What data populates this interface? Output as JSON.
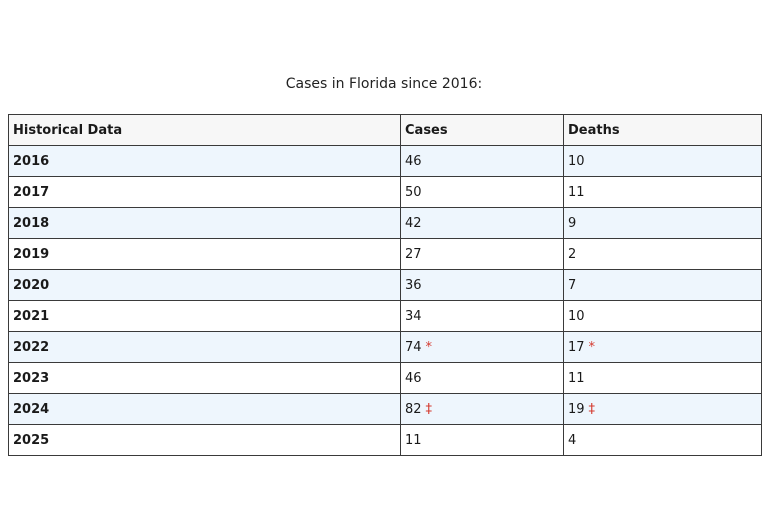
{
  "caption": "Cases in Florida since 2016:",
  "table": {
    "headers": [
      "Historical Data",
      "Cases",
      "Deaths"
    ],
    "rows": [
      {
        "year": "2016",
        "cases": "46",
        "cases_note": "",
        "deaths": "10",
        "deaths_note": ""
      },
      {
        "year": "2017",
        "cases": "50",
        "cases_note": "",
        "deaths": "11",
        "deaths_note": ""
      },
      {
        "year": "2018",
        "cases": "42",
        "cases_note": "",
        "deaths": "9",
        "deaths_note": ""
      },
      {
        "year": "2019",
        "cases": "27",
        "cases_note": "",
        "deaths": "2",
        "deaths_note": ""
      },
      {
        "year": "2020",
        "cases": "36",
        "cases_note": "",
        "deaths": "7",
        "deaths_note": ""
      },
      {
        "year": "2021",
        "cases": "34",
        "cases_note": "",
        "deaths": "10",
        "deaths_note": ""
      },
      {
        "year": "2022",
        "cases": "74",
        "cases_note": "*",
        "deaths": "17",
        "deaths_note": "*"
      },
      {
        "year": "2023",
        "cases": "46",
        "cases_note": "",
        "deaths": "11",
        "deaths_note": ""
      },
      {
        "year": "2024",
        "cases": "82",
        "cases_note": "‡",
        "deaths": "19",
        "deaths_note": "‡"
      },
      {
        "year": "2025",
        "cases": "11",
        "cases_note": "",
        "deaths": "4",
        "deaths_note": ""
      }
    ]
  },
  "colors": {
    "note_mark": "#d43a2f",
    "stripe": "#eef6fd",
    "border": "#3a3a3a"
  }
}
